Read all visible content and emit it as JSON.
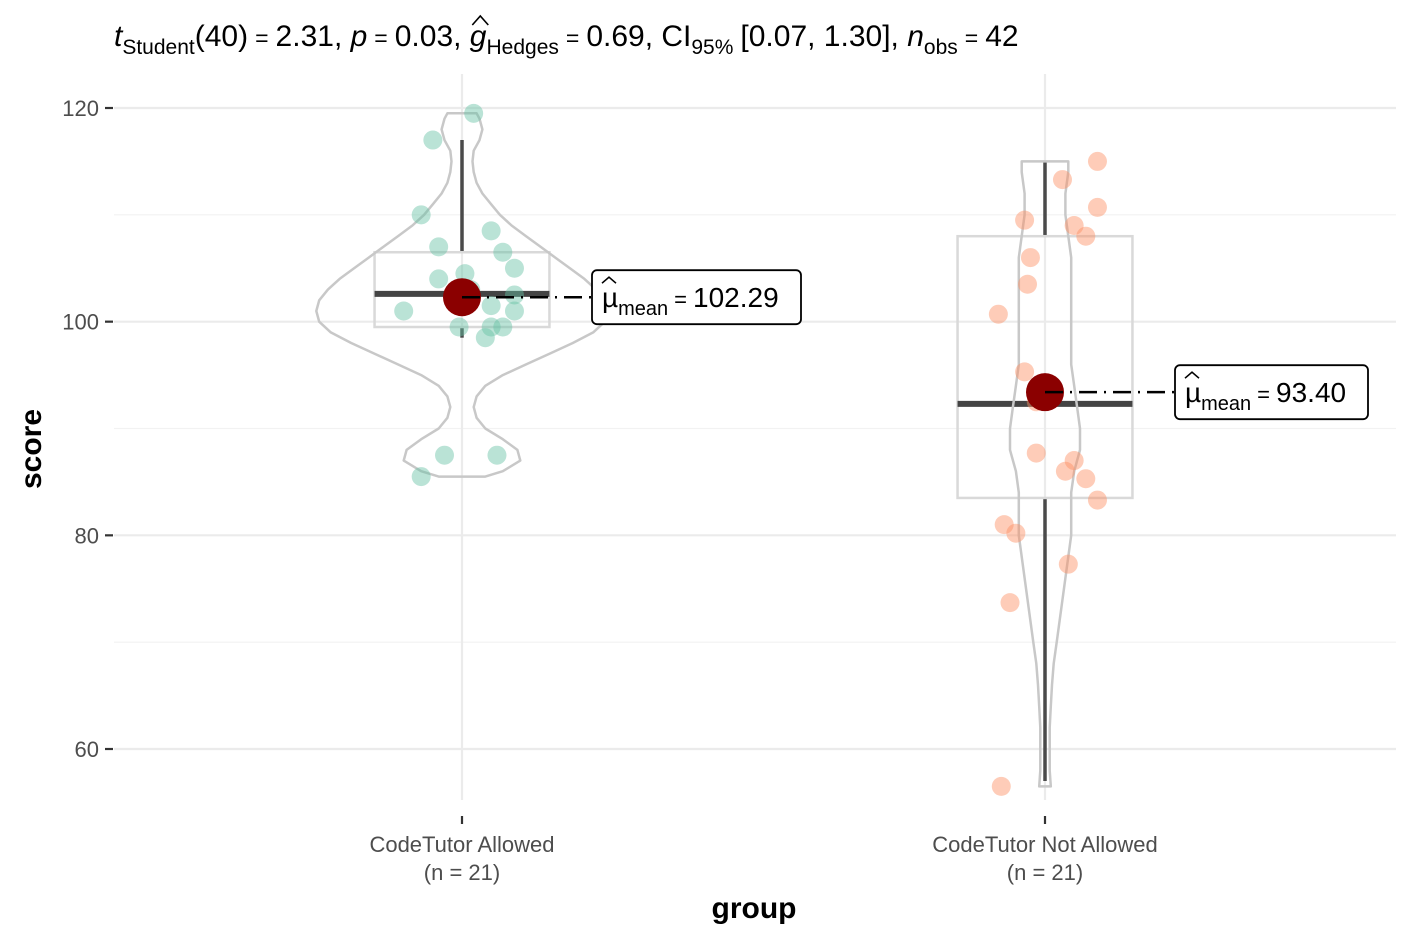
{
  "chart_data": {
    "type": "violin-box-scatter",
    "subtitle": {
      "stat_name": "t",
      "stat_subscript": "Student",
      "df": "(40)",
      "stat_value": "2.31",
      "p_symbol": "p",
      "p_value": "0.03",
      "effect_symbol": "g",
      "effect_subscript": "Hedges",
      "effect_value": "0.69",
      "ci_symbol": "CI",
      "ci_subscript": "95%",
      "ci_value": "[0.07, 1.30]",
      "n_symbol": "n",
      "n_subscript": "obs",
      "n_value": "42"
    },
    "xlabel": "group",
    "ylabel": "score",
    "ylim": [
      53,
      123
    ],
    "yticks": [
      60,
      80,
      100,
      120
    ],
    "grid": true,
    "groups": [
      {
        "name": "CodeTutor Allowed",
        "n_label": "(n = 21)",
        "color": "#66C2A5",
        "mean": 102.29,
        "mean_label": "102.29",
        "box": {
          "q1": 99.5,
          "median": 102.6,
          "q3": 106.5,
          "whisker_low": 98.5,
          "whisker_high": 117
        },
        "violin": {
          "y": [
            85.5,
            86,
            87,
            88,
            89,
            90,
            91,
            92,
            93,
            94,
            95,
            96,
            97,
            98,
            99,
            100,
            101,
            102,
            103,
            104,
            105,
            106,
            107,
            108,
            109,
            110,
            111,
            112,
            113,
            114,
            115,
            116,
            117,
            118,
            119,
            119.5
          ],
          "halfwidth": [
            0.04,
            0.07,
            0.1,
            0.095,
            0.07,
            0.04,
            0.025,
            0.02,
            0.025,
            0.04,
            0.07,
            0.11,
            0.15,
            0.19,
            0.225,
            0.245,
            0.25,
            0.245,
            0.23,
            0.21,
            0.185,
            0.16,
            0.135,
            0.11,
            0.085,
            0.065,
            0.05,
            0.035,
            0.025,
            0.02,
            0.018,
            0.02,
            0.03,
            0.035,
            0.03,
            0.025
          ]
        },
        "points": [
          {
            "dx": 0.02,
            "y": 119.5
          },
          {
            "dx": -0.05,
            "y": 117.0
          },
          {
            "dx": -0.07,
            "y": 110.0
          },
          {
            "dx": -0.04,
            "y": 107.0
          },
          {
            "dx": 0.05,
            "y": 108.5
          },
          {
            "dx": 0.07,
            "y": 106.5
          },
          {
            "dx": 0.09,
            "y": 105.0
          },
          {
            "dx": -0.04,
            "y": 104.0
          },
          {
            "dx": 0.005,
            "y": 104.5
          },
          {
            "dx": 0.09,
            "y": 102.5
          },
          {
            "dx": 0.05,
            "y": 101.5
          },
          {
            "dx": -0.1,
            "y": 101.0
          },
          {
            "dx": 0.09,
            "y": 101.0
          },
          {
            "dx": -0.005,
            "y": 99.5
          },
          {
            "dx": 0.05,
            "y": 99.5
          },
          {
            "dx": 0.07,
            "y": 99.5
          },
          {
            "dx": 0.04,
            "y": 98.5
          },
          {
            "dx": -0.03,
            "y": 87.5
          },
          {
            "dx": 0.06,
            "y": 87.5
          },
          {
            "dx": -0.07,
            "y": 85.5
          },
          {
            "dx": 0.015,
            "y": 103.0
          }
        ]
      },
      {
        "name": "CodeTutor Not Allowed",
        "n_label": "(n = 21)",
        "color": "#FC8D62",
        "mean": 93.4,
        "mean_label": "93.40",
        "box": {
          "q1": 83.5,
          "median": 92.3,
          "q3": 108,
          "whisker_low": 57,
          "whisker_high": 115
        },
        "violin": {
          "y": [
            56.5,
            58,
            60,
            62,
            64,
            66,
            68,
            70,
            72,
            74,
            76,
            78,
            80,
            82,
            84,
            86,
            88,
            90,
            92,
            94,
            96,
            98,
            100,
            102,
            104,
            106,
            108,
            110,
            112,
            114,
            115
          ],
          "halfwidth": [
            0.01,
            0.008,
            0.008,
            0.008,
            0.01,
            0.012,
            0.015,
            0.02,
            0.025,
            0.03,
            0.035,
            0.04,
            0.045,
            0.045,
            0.045,
            0.05,
            0.06,
            0.06,
            0.055,
            0.05,
            0.045,
            0.045,
            0.045,
            0.045,
            0.045,
            0.045,
            0.04,
            0.035,
            0.035,
            0.04,
            0.04
          ]
        },
        "points": [
          {
            "dx": 0.03,
            "y": 113.3
          },
          {
            "dx": 0.09,
            "y": 115.0
          },
          {
            "dx": -0.035,
            "y": 109.5
          },
          {
            "dx": 0.05,
            "y": 109.0
          },
          {
            "dx": 0.09,
            "y": 110.7
          },
          {
            "dx": 0.07,
            "y": 108.0
          },
          {
            "dx": -0.025,
            "y": 106.0
          },
          {
            "dx": -0.03,
            "y": 103.5
          },
          {
            "dx": -0.08,
            "y": 100.7
          },
          {
            "dx": -0.035,
            "y": 95.3
          },
          {
            "dx": -0.015,
            "y": 92.5
          },
          {
            "dx": -0.015,
            "y": 87.7
          },
          {
            "dx": 0.05,
            "y": 87.0
          },
          {
            "dx": 0.035,
            "y": 86.0
          },
          {
            "dx": 0.07,
            "y": 85.3
          },
          {
            "dx": 0.09,
            "y": 83.3
          },
          {
            "dx": -0.07,
            "y": 81.0
          },
          {
            "dx": -0.05,
            "y": 80.2
          },
          {
            "dx": 0.04,
            "y": 77.3
          },
          {
            "dx": -0.06,
            "y": 73.7
          },
          {
            "dx": -0.075,
            "y": 56.5
          }
        ]
      }
    ]
  },
  "colors": {
    "mean_point": "#8B0000",
    "grid": "#ebebeb",
    "box_outline": "#d9d9d9",
    "violin_outline": "#c8c8c8",
    "median_line": "#4a4a4a"
  }
}
